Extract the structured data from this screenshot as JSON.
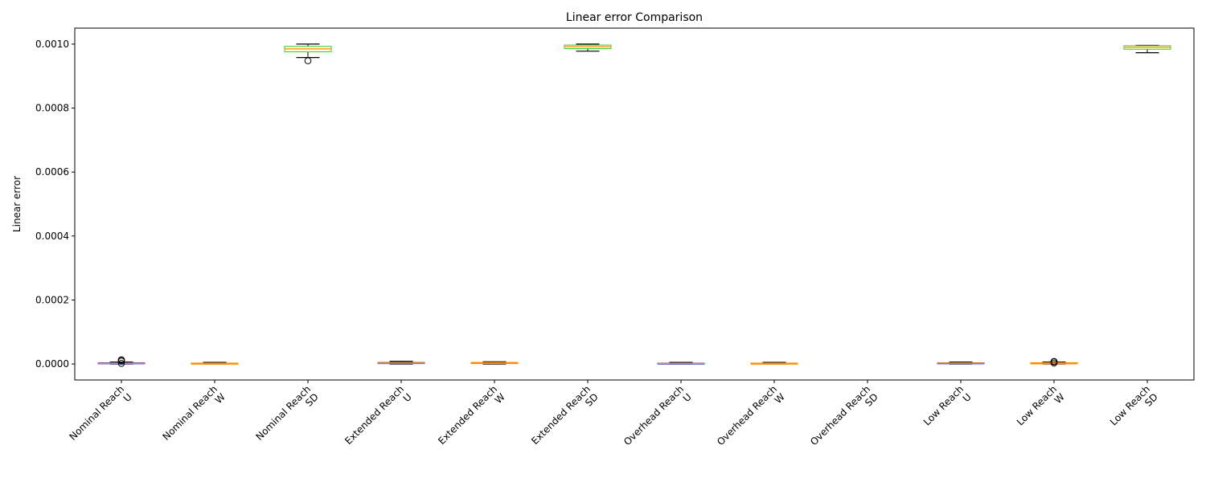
{
  "chart_data": {
    "type": "box",
    "title": "Linear error Comparison",
    "xlabel": "",
    "ylabel": "Linear error",
    "ylim": [
      -5e-05,
      0.00105
    ],
    "yticks": [
      "0.0000",
      "0.0002",
      "0.0004",
      "0.0006",
      "0.0008",
      "0.0010"
    ],
    "ytick_values": [
      0,
      0.0002,
      0.0004,
      0.0006,
      0.0008,
      0.001
    ],
    "grid": false,
    "colors": {
      "U_fill": "#ffb6c1",
      "U_edge": "#6a5acd",
      "W_fill": "#ffdab9",
      "W_edge": "#ff8c00",
      "SD_fill": "#ffffe0",
      "SD_edge": "#32cd32",
      "median": "#ff8c00",
      "whisker": "#000000"
    },
    "categories": [
      {
        "label": "Nominal Reach\nU",
        "kind": "U",
        "whislo": 0.0,
        "q1": 1e-06,
        "median": 2e-06,
        "q3": 4e-06,
        "whishi": 6e-06,
        "fliers": [
          9e-06,
          1.2e-05,
          1.3e-05,
          2e-06
        ]
      },
      {
        "label": "Nominal Reach\nW",
        "kind": "W",
        "whislo": 0.0,
        "q1": 1e-06,
        "median": 2e-06,
        "q3": 3e-06,
        "whishi": 5e-06,
        "fliers": []
      },
      {
        "label": "Nominal Reach\nSD",
        "kind": "SD",
        "whislo": 0.000958,
        "q1": 0.000976,
        "median": 0.000985,
        "q3": 0.000993,
        "whishi": 0.001,
        "fliers": [
          0.000948
        ]
      },
      {
        "label": "Extended Reach\nU",
        "kind": "U",
        "whislo": 0.0,
        "q1": 1e-06,
        "median": 3e-06,
        "q3": 5e-06,
        "whishi": 8e-06,
        "fliers": []
      },
      {
        "label": "Extended Reach\nW",
        "kind": "W",
        "whislo": 0.0,
        "q1": 2e-06,
        "median": 3e-06,
        "q3": 5e-06,
        "whishi": 7e-06,
        "fliers": []
      },
      {
        "label": "Extended Reach\nSD",
        "kind": "SD",
        "whislo": 0.000978,
        "q1": 0.000986,
        "median": 0.000992,
        "q3": 0.000997,
        "whishi": 0.001,
        "fliers": []
      },
      {
        "label": "Overhead Reach\nU",
        "kind": "U",
        "whislo": 0.0,
        "q1": 1e-06,
        "median": 2e-06,
        "q3": 3e-06,
        "whishi": 5e-06,
        "fliers": []
      },
      {
        "label": "Overhead Reach\nW",
        "kind": "W",
        "whislo": 0.0,
        "q1": 1e-06,
        "median": 2e-06,
        "q3": 3e-06,
        "whishi": 5e-06,
        "fliers": []
      },
      {
        "label": "Overhead Reach\nSD",
        "kind": "SD",
        "whislo": null,
        "q1": null,
        "median": null,
        "q3": null,
        "whishi": null,
        "fliers": []
      },
      {
        "label": "Low Reach\nU",
        "kind": "U",
        "whislo": 0.0,
        "q1": 1e-06,
        "median": 3e-06,
        "q3": 4e-06,
        "whishi": 6e-06,
        "fliers": []
      },
      {
        "label": "Low Reach\nW",
        "kind": "W",
        "whislo": 0.0,
        "q1": 1e-06,
        "median": 2e-06,
        "q3": 4e-06,
        "whishi": 6e-06,
        "fliers": [
          3e-06,
          7e-06,
          8e-06
        ]
      },
      {
        "label": "Low Reach\nSD",
        "kind": "SD",
        "whislo": 0.000973,
        "q1": 0.000984,
        "median": 0.00099,
        "q3": 0.000995,
        "whishi": 0.000996,
        "fliers": []
      }
    ]
  }
}
